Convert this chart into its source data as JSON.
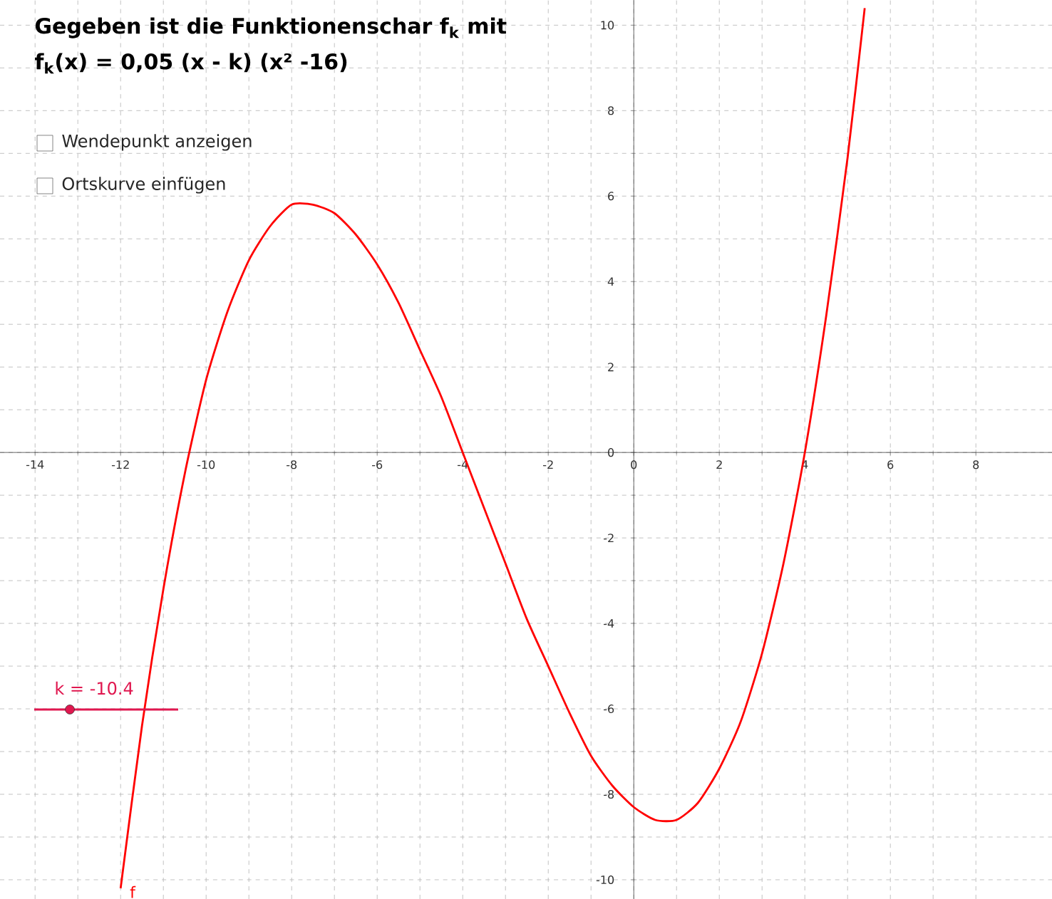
{
  "chart_data": {
    "type": "line",
    "title": "Gegeben ist die Funktionenschar f$_{k}$ mit",
    "subtitle": "f$_{k}$(x) = 0,05 (x - k) (x² -16)",
    "annotations": [
      "Wendepunkt anzeigen",
      "Ortskurve einfügen",
      "k = -10.4",
      "f"
    ],
    "x": [
      -12,
      -11.5,
      -11,
      -10.5,
      -10,
      -9.5,
      -9,
      -8.5,
      -8,
      -7.5,
      -7,
      -6.5,
      -6,
      -5.5,
      -5,
      -4.5,
      -4,
      -3.5,
      -3,
      -2.5,
      -2,
      -1.5,
      -1,
      -0.5,
      0,
      0.5,
      1,
      1.5,
      2,
      2.5,
      3,
      3.5,
      4,
      4.5,
      5,
      5.4
    ],
    "values": [
      -10.2,
      -6.4,
      -3.2,
      -0.5,
      1.7,
      3.3,
      4.5,
      5.3,
      5.8,
      5.8,
      5.6,
      5.1,
      4.4,
      3.5,
      2.4,
      1.3,
      0,
      -1.3,
      -2.6,
      -3.9,
      -5.0,
      -6.1,
      -7.1,
      -7.8,
      -8.3,
      -8.6,
      -8.6,
      -8.2,
      -7.4,
      -6.3,
      -4.7,
      -2.6,
      0,
      3.2,
      6.9,
      10.4
    ],
    "color": "#ff0000",
    "xlim": [
      -14.82,
      9.78
    ],
    "ylim": [
      -10.45,
      10.59
    ],
    "xticks": [
      -14,
      -12,
      -10,
      -8,
      -6,
      -4,
      -2,
      0,
      2,
      4,
      6,
      8
    ],
    "yticks": [
      -10,
      -8,
      -6,
      -4,
      -2,
      0,
      2,
      4,
      6,
      8,
      10
    ],
    "grid": true
  }
}
